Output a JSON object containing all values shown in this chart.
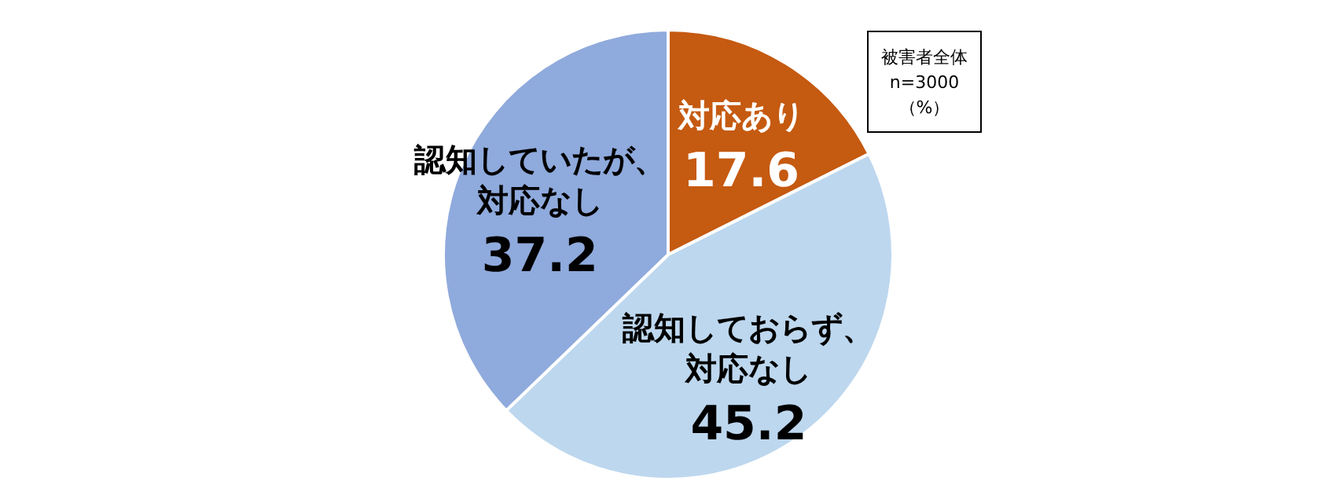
{
  "chart_data": {
    "type": "pie",
    "categories": [
      "対応あり",
      "認知しておらず、対応なし",
      "認知していたが、対応なし"
    ],
    "values": [
      17.6,
      45.2,
      37.2
    ],
    "colors": [
      "#c55a11",
      "#bdd7ee",
      "#8faadc"
    ],
    "data_labels": true,
    "legend": false,
    "annotations": [
      "被害者全体",
      "n=3000",
      "（%）"
    ]
  }
}
